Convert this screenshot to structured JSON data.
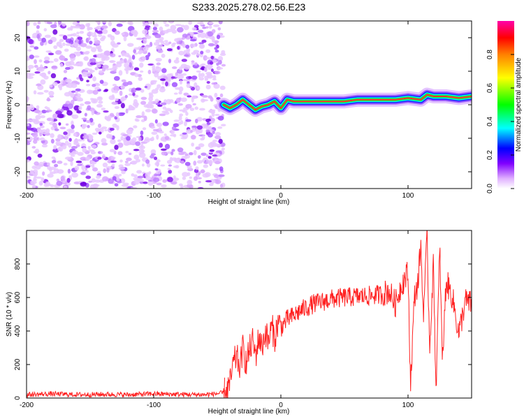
{
  "title": "S233.2025.278.02.56.E23",
  "chart_data": [
    {
      "type": "heatmap",
      "name": "spectrogram",
      "xlabel": "Height of straight line (km)",
      "ylabel": "Frequency (Hz)",
      "xlim": [
        -200,
        150
      ],
      "ylim": [
        -25,
        25
      ],
      "xticks": [
        -200,
        -100,
        0,
        100
      ],
      "yticks": [
        -20,
        -10,
        0,
        10,
        20
      ],
      "noise_region": {
        "x": [
          -200,
          -45
        ],
        "y": [
          -25,
          25
        ]
      },
      "ridge": {
        "x": [
          -45,
          -40,
          -35,
          -30,
          -25,
          -20,
          -15,
          -10,
          -5,
          0,
          5,
          10,
          20,
          30,
          40,
          50,
          60,
          70,
          80,
          90,
          100,
          110,
          115,
          120,
          130,
          140,
          150
        ],
        "y": [
          0,
          -1,
          0,
          1.5,
          0,
          -1.5,
          -0.5,
          0,
          1,
          -1,
          1.5,
          1,
          1,
          1,
          1,
          1,
          1.5,
          1.5,
          1.5,
          1.5,
          2,
          1.5,
          3,
          2.5,
          2.5,
          2,
          2.5
        ]
      },
      "colorbar": {
        "label": "Normalized spectral amplitude",
        "ticks": [
          0.0,
          0.2,
          0.4,
          0.6,
          0.8
        ],
        "range": [
          0,
          1
        ],
        "colors": [
          "#ffffff",
          "#e0b0ff",
          "#8000ff",
          "#0000ff",
          "#00ffff",
          "#00ff00",
          "#ffff00",
          "#ff8000",
          "#ff0000",
          "#ff00aa"
        ]
      }
    },
    {
      "type": "line",
      "name": "snr",
      "xlabel": "Height of straight line (km)",
      "ylabel": "SNR (10 * v/v)",
      "xlim": [
        -200,
        150
      ],
      "ylim": [
        0,
        1000
      ],
      "xticks": [
        -200,
        -100,
        0,
        100
      ],
      "yticks": [
        0,
        200,
        400,
        600,
        800
      ],
      "color": "#ff2020",
      "series": [
        {
          "x": [
            -200,
            -180,
            -160,
            -140,
            -120,
            -100,
            -80,
            -60,
            -45,
            -40,
            -38,
            -35,
            -32,
            -30,
            -27,
            -25,
            -22,
            -20,
            -17,
            -15,
            -12,
            -10,
            -7,
            -5,
            -2,
            0,
            5,
            10,
            15,
            20,
            25,
            30,
            40,
            50,
            60,
            70,
            80,
            85,
            90,
            95,
            100,
            102,
            105,
            108,
            110,
            112,
            115,
            117,
            120,
            122,
            125,
            127,
            130,
            135,
            140,
            145,
            150
          ],
          "y": [
            20,
            25,
            20,
            22,
            20,
            25,
            22,
            20,
            30,
            80,
            180,
            250,
            180,
            300,
            200,
            280,
            340,
            250,
            370,
            300,
            400,
            330,
            430,
            350,
            460,
            420,
            470,
            490,
            520,
            540,
            560,
            570,
            590,
            600,
            605,
            610,
            620,
            640,
            560,
            680,
            750,
            80,
            600,
            700,
            920,
            500,
            950,
            300,
            800,
            50,
            900,
            200,
            700,
            600,
            380,
            580,
            560
          ]
        }
      ]
    }
  ]
}
